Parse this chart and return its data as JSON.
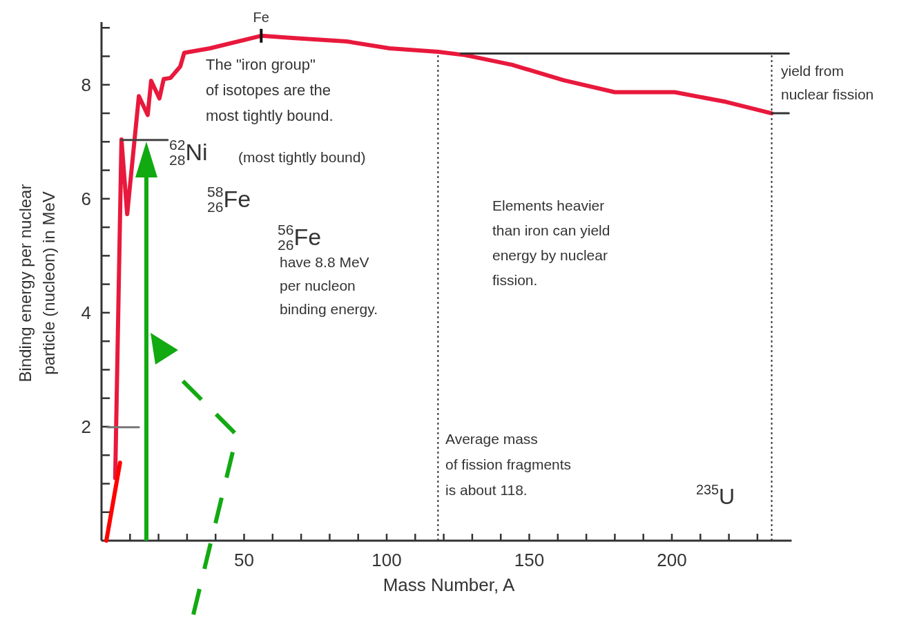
{
  "chart_data": {
    "type": "line",
    "xlabel": "Mass Number, A",
    "ylabel": "Binding energy per nuclear\nparticle (nucleon) in MeV",
    "xlim": [
      0,
      242
    ],
    "ylim": [
      0,
      9.1
    ],
    "xticks": [
      {
        "value": 10,
        "label": null
      },
      {
        "value": 20,
        "label": null
      },
      {
        "value": 30,
        "label": null
      },
      {
        "value": 40,
        "label": null
      },
      50,
      {
        "value": 60,
        "label": null
      },
      {
        "value": 70,
        "label": null
      },
      {
        "value": 80,
        "label": null
      },
      {
        "value": 90,
        "label": null
      },
      100,
      {
        "value": 110,
        "label": null
      },
      {
        "value": 120,
        "label": null
      },
      {
        "value": 130,
        "label": null
      },
      {
        "value": 140,
        "label": null
      },
      150,
      {
        "value": 160,
        "label": null
      },
      {
        "value": 170,
        "label": null
      },
      {
        "value": 180,
        "label": null
      },
      {
        "value": 190,
        "label": null
      },
      200,
      {
        "value": 210,
        "label": null
      },
      {
        "value": 220,
        "label": null
      },
      {
        "value": 230,
        "label": null
      }
    ],
    "yticks": [
      {
        "value": 0.5,
        "label": null
      },
      {
        "value": 1,
        "label": null
      },
      {
        "value": 1.5,
        "label": null
      },
      2,
      {
        "value": 2.5,
        "label": null
      },
      {
        "value": 3,
        "label": null
      },
      {
        "value": 3.5,
        "label": null
      },
      4,
      {
        "value": 4.5,
        "label": null
      },
      {
        "value": 5,
        "label": null
      },
      {
        "value": 5.5,
        "label": null
      },
      6,
      {
        "value": 6.5,
        "label": null
      },
      {
        "value": 7,
        "label": null
      },
      {
        "value": 7.5,
        "label": null
      },
      8,
      {
        "value": 8.5,
        "label": null
      },
      {
        "value": 9,
        "label": null
      }
    ],
    "grid": false,
    "marker": "none",
    "line_style": "solid",
    "series": [
      {
        "color": "#e8193c",
        "x": [
          4.8,
          7.0,
          9.0,
          13.1,
          16.2,
          17.4,
          20.3,
          21.8,
          24.2,
          27.6,
          29,
          38,
          56,
          67,
          86,
          101,
          118,
          127.6,
          144,
          162,
          180,
          201,
          219,
          235
        ],
        "values": [
          1.1,
          7.04,
          5.73,
          7.8,
          7.47,
          8.07,
          7.76,
          8.1,
          8.12,
          8.32,
          8.56,
          8.64,
          8.86,
          8.82,
          8.76,
          8.64,
          8.58,
          8.52,
          8.35,
          8.08,
          7.87,
          7.87,
          7.7,
          7.5
        ]
      },
      {
        "color": "#ff0000",
        "x": [
          1.7,
          6.5
        ],
        "values": [
          0,
          1.37
        ]
      },
      {
        "color": "#444444",
        "x": [
          7,
          23.2
        ],
        "values": [
          7.03,
          7.03
        ]
      },
      {
        "color": "#777777",
        "x": [
          2.2,
          13.1
        ],
        "values": [
          1.99,
          1.99
        ]
      },
      {
        "color": "#333333",
        "x": [
          126,
          241
        ],
        "values": [
          8.55,
          8.55
        ]
      },
      {
        "color": "#333333",
        "x": [
          235,
          241
        ],
        "values": [
          7.5,
          7.5
        ]
      }
    ],
    "ref_lines": [
      {
        "axis": "x",
        "value": 118,
        "color": "#333333",
        "line_style": "dotted"
      },
      {
        "axis": "x",
        "value": 235,
        "color": "#333333",
        "line_style": "dotted"
      }
    ],
    "annotations": [
      {
        "text": "Fe",
        "x": 56,
        "y": 8.86
      },
      "The \"iron group\"\nof isotopes are the\nmost tightly bound.",
      "$^{62}$$_{28}$Ni",
      "(most tightly bound)",
      "$^{58}$$_{26}$Fe",
      "$^{56}$$_{26}$Fe",
      "have 8.8 MeV\nper nucleon\nbinding energy.",
      "Elements heavier\nthan iron can yield\nenergy by nuclear\nfission.",
      "yield from\nnuclear fission",
      "Average mass\nof fission fragments\nis about 118.",
      "$^{235}$U"
    ]
  }
}
